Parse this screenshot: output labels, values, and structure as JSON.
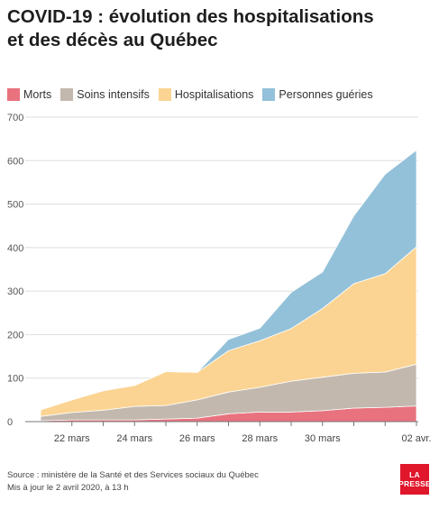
{
  "title_line1": "COVID-19 : évolution des hospitalisations",
  "title_line2": "et des décès au Québec",
  "colors": {
    "morts": "#e8727e",
    "soins": "#c2b8ae",
    "hosp": "#fbd493",
    "gueries": "#93c1d9",
    "axis": "#777777",
    "grid": "#dddddd"
  },
  "chart_data": {
    "type": "area",
    "stacked": true,
    "x_tick_labels": [
      "22 mars",
      "24 mars",
      "26 mars",
      "28 mars",
      "30 mars",
      "02 avr."
    ],
    "x": [
      "21 mars",
      "22 mars",
      "23 mars",
      "24 mars",
      "25 mars",
      "26 mars",
      "27 mars",
      "28 mars",
      "29 mars",
      "30 mars",
      "31 mars",
      "1 avr.",
      "2 avr."
    ],
    "ylim": [
      0,
      700
    ],
    "y_ticks": [
      0,
      100,
      200,
      300,
      400,
      500,
      600,
      700
    ],
    "grid": "horizontal",
    "legend_position": "top-left",
    "series": [
      {
        "name": "Morts",
        "key": "morts",
        "values": [
          2,
          4,
          4,
          4,
          6,
          8,
          18,
          22,
          22,
          25,
          31,
          33,
          36
        ]
      },
      {
        "name": "Soins intensifs",
        "key": "soins",
        "values": [
          10,
          17,
          22,
          31,
          31,
          42,
          50,
          57,
          71,
          77,
          80,
          81,
          96
        ]
      },
      {
        "name": "Hospitalisations",
        "key": "hosp",
        "values": [
          15,
          29,
          45,
          48,
          78,
          63,
          95,
          107,
          121,
          158,
          206,
          226,
          270
        ]
      },
      {
        "name": "Personnes guéries",
        "key": "gueries",
        "values": [
          0,
          0,
          0,
          0,
          0,
          0,
          26,
          29,
          83,
          84,
          156,
          229,
          222
        ]
      }
    ]
  },
  "footer": {
    "source": "Source : ministère de la Santé et des Services sociaux du Québec",
    "updated": "Mis à jour le 2 avril 2020, à 13 h"
  },
  "logo": {
    "line1": "LA",
    "line2": "PRESSE"
  }
}
